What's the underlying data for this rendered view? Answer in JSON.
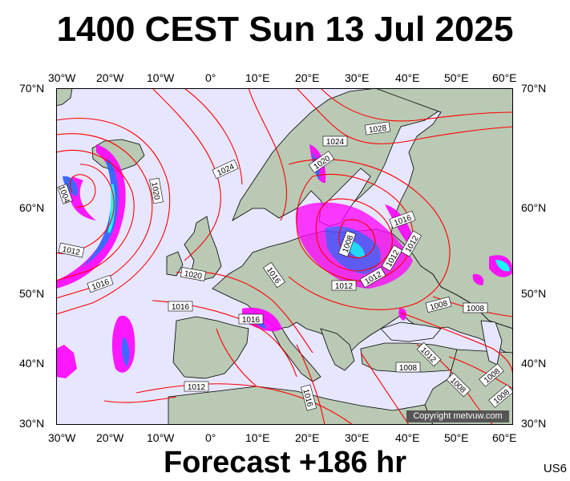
{
  "header": {
    "title": "1400 CEST Sun 13 Jul 2025"
  },
  "footer": {
    "forecast": "Forecast +186 hr",
    "model_code": "US6"
  },
  "axes": {
    "top_lon": [
      "30°W",
      "20°W",
      "10°W",
      "0°",
      "10°E",
      "20°E",
      "30°E",
      "40°E",
      "50°E",
      "60°E"
    ],
    "bottom_lon": [
      "30°W",
      "20°W",
      "10°W",
      "0°",
      "10°E",
      "20°E",
      "30°E",
      "40°E",
      "50°E",
      "60°E"
    ],
    "left_lat": [
      "70°N",
      "60°N",
      "50°N",
      "40°N",
      "30°N"
    ],
    "right_lat": [
      "70°N",
      "60°N",
      "50°N",
      "40°N",
      "30°N"
    ]
  },
  "map": {
    "copyright": "Copyright metvuw.com",
    "isobar_labels": [
      "1028",
      "1024",
      "1024",
      "1020",
      "1020",
      "1004",
      "1012",
      "1016",
      "1020",
      "1016",
      "1016",
      "1012",
      "1012",
      "1008",
      "1016",
      "1012",
      "1008",
      "1008",
      "1012",
      "1016",
      "1008",
      "1008",
      "1012",
      "1008",
      "1016",
      "1008",
      "1012"
    ],
    "colors": {
      "ocean": "#e6e6ff",
      "land": "#b9c9b4",
      "isobar": "#ff0000",
      "coast": "#000000",
      "rain_light": "#ff00ff",
      "rain_mid": "#3355ff",
      "rain_heavy": "#00ffff"
    }
  }
}
